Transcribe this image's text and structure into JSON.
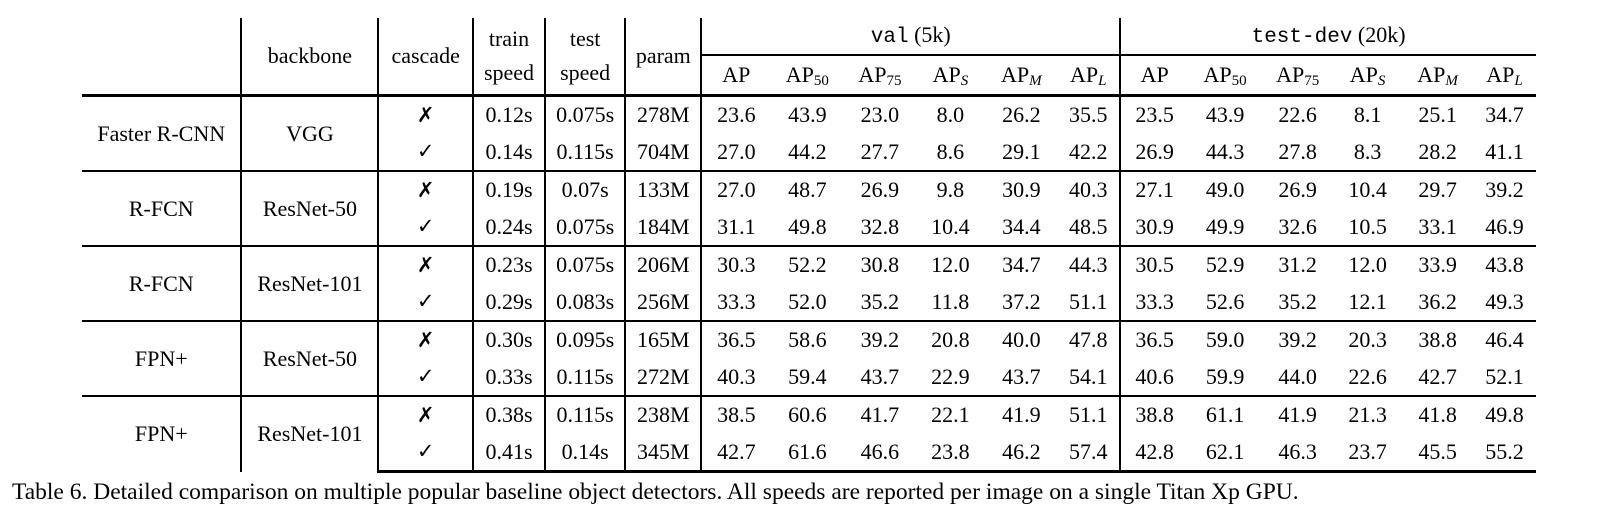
{
  "table": {
    "col_headers": {
      "backbone": "backbone",
      "cascade": "cascade",
      "train": [
        "train",
        "speed"
      ],
      "test": [
        "test",
        "speed"
      ],
      "param": "param",
      "val_mono": "val",
      "val_rest": " (5k)",
      "testdev_mono": "test-dev",
      "testdev_rest": " (20k)"
    },
    "metric_headers": [
      {
        "base": "AP",
        "sub": ""
      },
      {
        "base": "AP",
        "sub": "50"
      },
      {
        "base": "AP",
        "sub": "75"
      },
      {
        "base": "AP",
        "sub": "S"
      },
      {
        "base": "AP",
        "sub": "M"
      },
      {
        "base": "AP",
        "sub": "L"
      },
      {
        "base": "AP",
        "sub": ""
      },
      {
        "base": "AP",
        "sub": "50"
      },
      {
        "base": "AP",
        "sub": "75"
      },
      {
        "base": "AP",
        "sub": "S"
      },
      {
        "base": "AP",
        "sub": "M"
      },
      {
        "base": "AP",
        "sub": "L"
      }
    ],
    "groups": [
      {
        "detector": "Faster R-CNN",
        "backbone": "VGG",
        "rows": [
          {
            "cascade": "✗",
            "train": "0.12s",
            "test": "0.075s",
            "param": "278M",
            "vals": [
              "23.6",
              "43.9",
              "23.0",
              "8.0",
              "26.2",
              "35.5",
              "23.5",
              "43.9",
              "22.6",
              "8.1",
              "25.1",
              "34.7"
            ]
          },
          {
            "cascade": "✓",
            "train": "0.14s",
            "test": "0.115s",
            "param": "704M",
            "vals": [
              "27.0",
              "44.2",
              "27.7",
              "8.6",
              "29.1",
              "42.2",
              "26.9",
              "44.3",
              "27.8",
              "8.3",
              "28.2",
              "41.1"
            ]
          }
        ]
      },
      {
        "detector": "R-FCN",
        "backbone": "ResNet-50",
        "rows": [
          {
            "cascade": "✗",
            "train": "0.19s",
            "test": "0.07s",
            "param": "133M",
            "vals": [
              "27.0",
              "48.7",
              "26.9",
              "9.8",
              "30.9",
              "40.3",
              "27.1",
              "49.0",
              "26.9",
              "10.4",
              "29.7",
              "39.2"
            ]
          },
          {
            "cascade": "✓",
            "train": "0.24s",
            "test": "0.075s",
            "param": "184M",
            "vals": [
              "31.1",
              "49.8",
              "32.8",
              "10.4",
              "34.4",
              "48.5",
              "30.9",
              "49.9",
              "32.6",
              "10.5",
              "33.1",
              "46.9"
            ]
          }
        ]
      },
      {
        "detector": "R-FCN",
        "backbone": "ResNet-101",
        "rows": [
          {
            "cascade": "✗",
            "train": "0.23s",
            "test": "0.075s",
            "param": "206M",
            "vals": [
              "30.3",
              "52.2",
              "30.8",
              "12.0",
              "34.7",
              "44.3",
              "30.5",
              "52.9",
              "31.2",
              "12.0",
              "33.9",
              "43.8"
            ]
          },
          {
            "cascade": "✓",
            "train": "0.29s",
            "test": "0.083s",
            "param": "256M",
            "vals": [
              "33.3",
              "52.0",
              "35.2",
              "11.8",
              "37.2",
              "51.1",
              "33.3",
              "52.6",
              "35.2",
              "12.1",
              "36.2",
              "49.3"
            ]
          }
        ]
      },
      {
        "detector": "FPN+",
        "backbone": "ResNet-50",
        "rows": [
          {
            "cascade": "✗",
            "train": "0.30s",
            "test": "0.095s",
            "param": "165M",
            "vals": [
              "36.5",
              "58.6",
              "39.2",
              "20.8",
              "40.0",
              "47.8",
              "36.5",
              "59.0",
              "39.2",
              "20.3",
              "38.8",
              "46.4"
            ]
          },
          {
            "cascade": "✓",
            "train": "0.33s",
            "test": "0.115s",
            "param": "272M",
            "vals": [
              "40.3",
              "59.4",
              "43.7",
              "22.9",
              "43.7",
              "54.1",
              "40.6",
              "59.9",
              "44.0",
              "22.6",
              "42.7",
              "52.1"
            ]
          }
        ]
      },
      {
        "detector": "FPN+",
        "backbone": "ResNet-101",
        "rows": [
          {
            "cascade": "✗",
            "train": "0.38s",
            "test": "0.115s",
            "param": "238M",
            "vals": [
              "38.5",
              "60.6",
              "41.7",
              "22.1",
              "41.9",
              "51.1",
              "38.8",
              "61.1",
              "41.9",
              "21.3",
              "41.8",
              "49.8"
            ]
          },
          {
            "cascade": "✓",
            "train": "0.41s",
            "test": "0.14s",
            "param": "345M",
            "vals": [
              "42.7",
              "61.6",
              "46.6",
              "23.8",
              "46.2",
              "57.4",
              "42.8",
              "62.1",
              "46.3",
              "23.7",
              "45.5",
              "55.2"
            ]
          }
        ]
      }
    ]
  },
  "caption": "Table 6. Detailed comparison on multiple popular baseline object detectors. All speeds are reported per image on a single Titan Xp GPU."
}
